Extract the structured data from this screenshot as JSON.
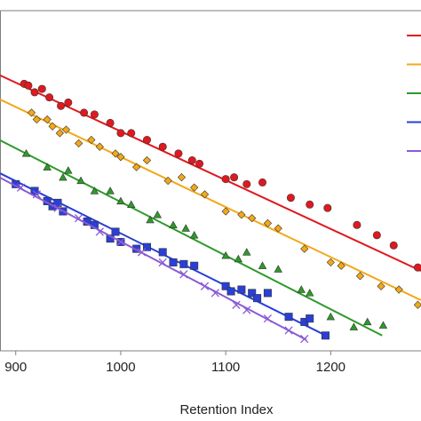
{
  "chart_data": {
    "type": "scatter",
    "xlabel": "Retention Index",
    "xlim": [
      885,
      1286
    ],
    "ylim": [
      0,
      100
    ],
    "xticks": [
      900,
      1000,
      1100,
      1200
    ],
    "series": [
      {
        "color": "#e0191f",
        "marker": "circle",
        "x": [
          908,
          912,
          918,
          925,
          932,
          943,
          950,
          965,
          975,
          990,
          1000,
          1010,
          1025,
          1040,
          1055,
          1068,
          1075,
          1100,
          1108,
          1120,
          1135,
          1162,
          1180,
          1197,
          1225,
          1244,
          1260,
          1283
        ],
        "values": [
          78.5,
          78,
          76,
          77,
          74.5,
          72,
          73,
          70,
          69.5,
          67,
          64,
          64,
          62,
          60,
          58,
          56,
          55,
          50.5,
          51,
          49,
          49.5,
          45,
          43,
          42,
          37,
          34,
          31,
          24.5
        ],
        "fit": {
          "x": [
            885,
            1286
          ],
          "y": [
            81,
            23.5
          ]
        }
      },
      {
        "color": "#f2a818",
        "marker": "diamond",
        "x": [
          915,
          920,
          930,
          935,
          942,
          948,
          960,
          972,
          980,
          995,
          1000,
          1015,
          1025,
          1045,
          1058,
          1070,
          1080,
          1100,
          1115,
          1125,
          1140,
          1150,
          1175,
          1200,
          1210,
          1228,
          1248,
          1265,
          1283
        ],
        "values": [
          70,
          68,
          68,
          66,
          64,
          65,
          61,
          62,
          60,
          58,
          57,
          54,
          56,
          50,
          51,
          48,
          46,
          41,
          40,
          39,
          37.5,
          36,
          30,
          26,
          25,
          22,
          19,
          18,
          13.5
        ],
        "fit": {
          "x": [
            885,
            1286
          ],
          "y": [
            73.9,
            14.9
          ]
        }
      },
      {
        "color": "#2e9a2a",
        "marker": "triangle",
        "x": [
          910,
          930,
          945,
          950,
          962,
          975,
          990,
          1000,
          1010,
          1028,
          1035,
          1050,
          1062,
          1070,
          1100,
          1112,
          1120,
          1135,
          1150,
          1172,
          1180,
          1200,
          1222,
          1235,
          1250
        ],
        "values": [
          58,
          54,
          51,
          53,
          50,
          47,
          47,
          44,
          43,
          38.5,
          40,
          37,
          36,
          34,
          28,
          27,
          29,
          25,
          24,
          18,
          17,
          10,
          7,
          8.5,
          7.5
        ],
        "fit": {
          "x": [
            885,
            1249
          ],
          "y": [
            61.9,
            4.5
          ]
        }
      },
      {
        "color": "#2a3fd6",
        "marker": "square",
        "x": [
          900,
          918,
          930,
          935,
          940,
          945,
          968,
          975,
          990,
          995,
          1000,
          1015,
          1025,
          1040,
          1050,
          1060,
          1070,
          1100,
          1105,
          1115,
          1125,
          1130,
          1140,
          1160,
          1175,
          1180,
          1195
        ],
        "values": [
          49,
          47,
          44,
          42.5,
          43.5,
          41,
          38,
          37,
          33,
          35,
          32,
          30,
          30.5,
          29,
          26,
          25.5,
          25,
          19,
          17.5,
          18,
          17,
          15.5,
          17,
          10,
          8.5,
          9.5,
          4.5
        ],
        "fit": {
          "x": [
            885,
            1198
          ],
          "y": [
            52.2,
            4.1
          ]
        }
      },
      {
        "color": "#8a5ad6",
        "marker": "cross",
        "x": [
          905,
          920,
          940,
          960,
          980,
          1000,
          1020,
          1040,
          1060,
          1080,
          1090,
          1110,
          1120,
          1140,
          1160,
          1175
        ],
        "values": [
          48,
          46,
          42,
          39,
          35,
          32,
          29,
          26,
          22.5,
          19,
          17,
          13.5,
          12,
          9.5,
          6,
          3.5
        ],
        "fit": {
          "x": [
            885,
            1177
          ],
          "y": [
            50.9,
            3.2
          ]
        }
      }
    ]
  }
}
